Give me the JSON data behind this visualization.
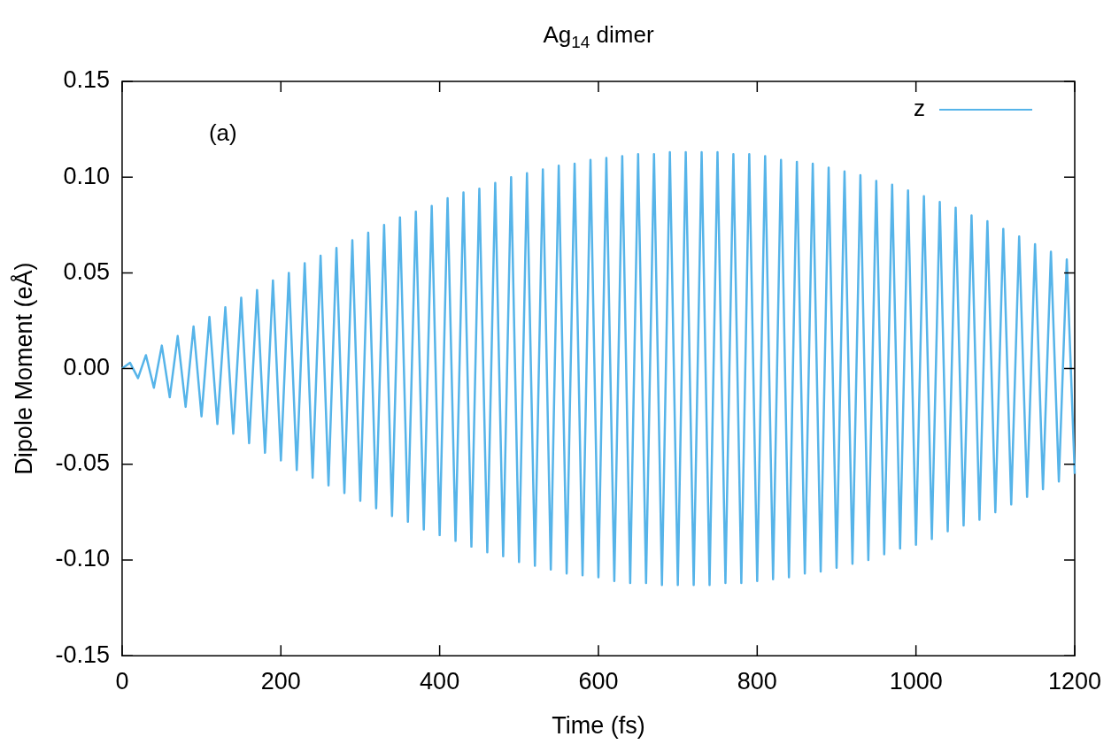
{
  "chart_data": {
    "type": "line",
    "title": "Ag$_{14}$ dimer",
    "xlabel": "Time (fs)",
    "ylabel": "Dipole Moment (eÅ)",
    "annotations": [
      "(a)"
    ],
    "x": [
      0,
      10,
      20,
      30,
      40,
      50,
      60,
      70,
      80,
      90,
      100,
      110,
      120,
      130,
      140,
      150,
      160,
      170,
      180,
      190,
      200,
      210,
      220,
      230,
      240,
      250,
      260,
      270,
      280,
      290,
      300,
      310,
      320,
      330,
      340,
      350,
      360,
      370,
      380,
      390,
      400,
      410,
      420,
      430,
      440,
      450,
      460,
      470,
      480,
      490,
      500,
      510,
      520,
      530,
      540,
      550,
      560,
      570,
      580,
      590,
      600,
      610,
      620,
      630,
      640,
      650,
      660,
      670,
      680,
      690,
      700,
      710,
      720,
      730,
      740,
      750,
      760,
      770,
      780,
      790,
      800,
      810,
      820,
      830,
      840,
      850,
      860,
      870,
      880,
      890,
      900,
      910,
      920,
      930,
      940,
      950,
      960,
      970,
      980,
      990,
      1000,
      1010,
      1020,
      1030,
      1040,
      1050,
      1060,
      1070,
      1080,
      1090,
      1100,
      1110,
      1120,
      1130,
      1140,
      1150,
      1160,
      1170,
      1180,
      1190,
      1200
    ],
    "series": [
      {
        "name": "z",
        "color": "#56b4e9",
        "values": [
          0,
          0.003,
          -0.005,
          0.007,
          -0.01,
          0.012,
          -0.015,
          0.017,
          -0.02,
          0.022,
          -0.025,
          0.027,
          -0.029,
          0.032,
          -0.034,
          0.037,
          -0.039,
          0.041,
          -0.044,
          0.046,
          -0.048,
          0.05,
          -0.053,
          0.055,
          -0.057,
          0.059,
          -0.061,
          0.063,
          -0.065,
          0.067,
          -0.069,
          0.071,
          -0.073,
          0.075,
          -0.077,
          0.079,
          -0.08,
          0.082,
          -0.084,
          0.085,
          -0.087,
          0.089,
          -0.09,
          0.092,
          -0.093,
          0.094,
          -0.096,
          0.097,
          -0.098,
          0.1,
          -0.101,
          0.102,
          -0.103,
          0.104,
          -0.105,
          0.106,
          -0.107,
          0.107,
          -0.108,
          0.109,
          -0.109,
          0.11,
          -0.111,
          0.111,
          -0.112,
          0.112,
          -0.112,
          0.112,
          -0.113,
          0.113,
          -0.113,
          0.113,
          -0.113,
          0.113,
          -0.113,
          0.113,
          -0.112,
          0.112,
          -0.112,
          0.112,
          -0.111,
          0.111,
          -0.11,
          0.109,
          -0.109,
          0.108,
          -0.107,
          0.107,
          -0.106,
          0.105,
          -0.104,
          0.103,
          -0.102,
          0.101,
          -0.1,
          0.098,
          -0.097,
          0.096,
          -0.094,
          0.093,
          -0.092,
          0.09,
          -0.089,
          0.087,
          -0.085,
          0.084,
          -0.082,
          0.08,
          -0.079,
          0.077,
          -0.075,
          0.073,
          -0.071,
          0.069,
          -0.067,
          0.065,
          -0.063,
          0.061,
          -0.059,
          0.057,
          -0.055
        ]
      }
    ],
    "xlim": [
      0,
      1200
    ],
    "xticks": [
      0,
      200,
      400,
      600,
      800,
      1000,
      1200
    ],
    "ylim": [
      -0.15,
      0.15
    ],
    "yticks": [
      {
        "value": -0.15,
        "label": "-0.15"
      },
      {
        "value": -0.1,
        "label": "-0.10"
      },
      {
        "value": -0.05,
        "label": "-0.05"
      },
      {
        "value": 0,
        "label": "0.00"
      },
      {
        "value": 0.05,
        "label": "0.05"
      },
      {
        "value": 0.1,
        "label": "0.10"
      },
      {
        "value": 0.15,
        "label": "0.15"
      }
    ],
    "grid": false,
    "legend": "top right",
    "marker": "none",
    "line_style": "solid"
  }
}
